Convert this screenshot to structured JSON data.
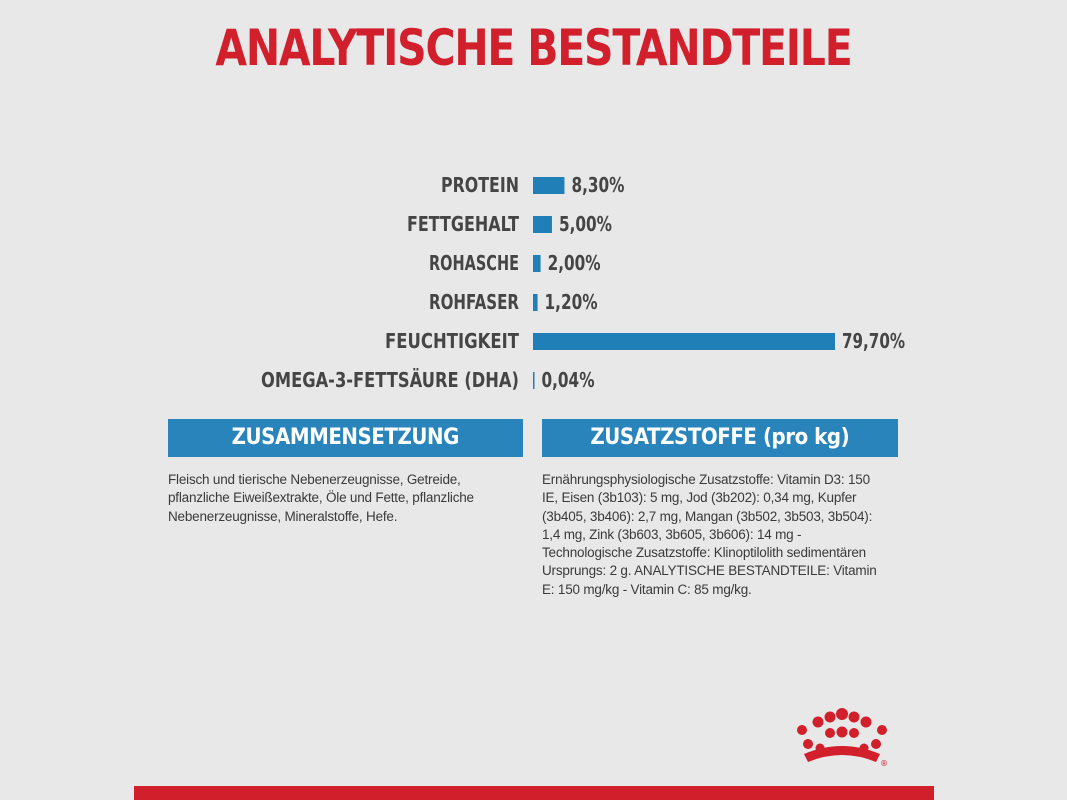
{
  "title": "ANALYTISCHE BESTANDTEILE",
  "chart_data": {
    "type": "bar",
    "orientation": "horizontal",
    "categories": [
      "PROTEIN",
      "FETTGEHALT",
      "ROHASCHE",
      "ROHFASER",
      "FEUCHTIGKEIT",
      "OMEGA-3-FETTSÄURE (DHA)"
    ],
    "values": [
      8.3,
      5.0,
      2.0,
      1.2,
      79.7,
      0.04
    ],
    "value_labels": [
      "8,30%",
      "5,00%",
      "2,00%",
      "1,20%",
      "79,70%",
      "0,04%"
    ],
    "unit": "%",
    "bar_color": "#1f7fb6",
    "legend": "none",
    "grid": false
  },
  "composition": {
    "heading": "ZUSAMMENSETZUNG",
    "text": "Fleisch und tierische Nebenerzeugnisse, Getreide, pflanzliche Eiweißextrakte, Öle und Fette, pflanzliche Nebenerzeugnisse, Mineralstoffe, Hefe."
  },
  "additives": {
    "heading": "ZUSATZSTOFFE (pro kg)",
    "text": "Ernährungsphysiologische Zusatzstoffe: Vitamin D3: 150 IE, Eisen (3b103): 5 mg, Jod (3b202): 0,34 mg, Kupfer (3b405, 3b406): 2,7 mg, Mangan (3b502, 3b503, 3b504): 1,4 mg, Zink (3b603, 3b605, 3b606): 14 mg - Technologische Zusatzstoffe: Klinoptilolith sedimentären Ursprungs: 2 g. ANALYTISCHE BESTANDTEILE: Vitamin E: 150 mg/kg - Vitamin C: 85 mg/kg."
  },
  "colors": {
    "title_red": "#d1202b",
    "header_blue": "#2a84bc",
    "background": "#e8e8e8"
  },
  "logo": {
    "icon": "crown-logo-icon",
    "mark": "®"
  }
}
